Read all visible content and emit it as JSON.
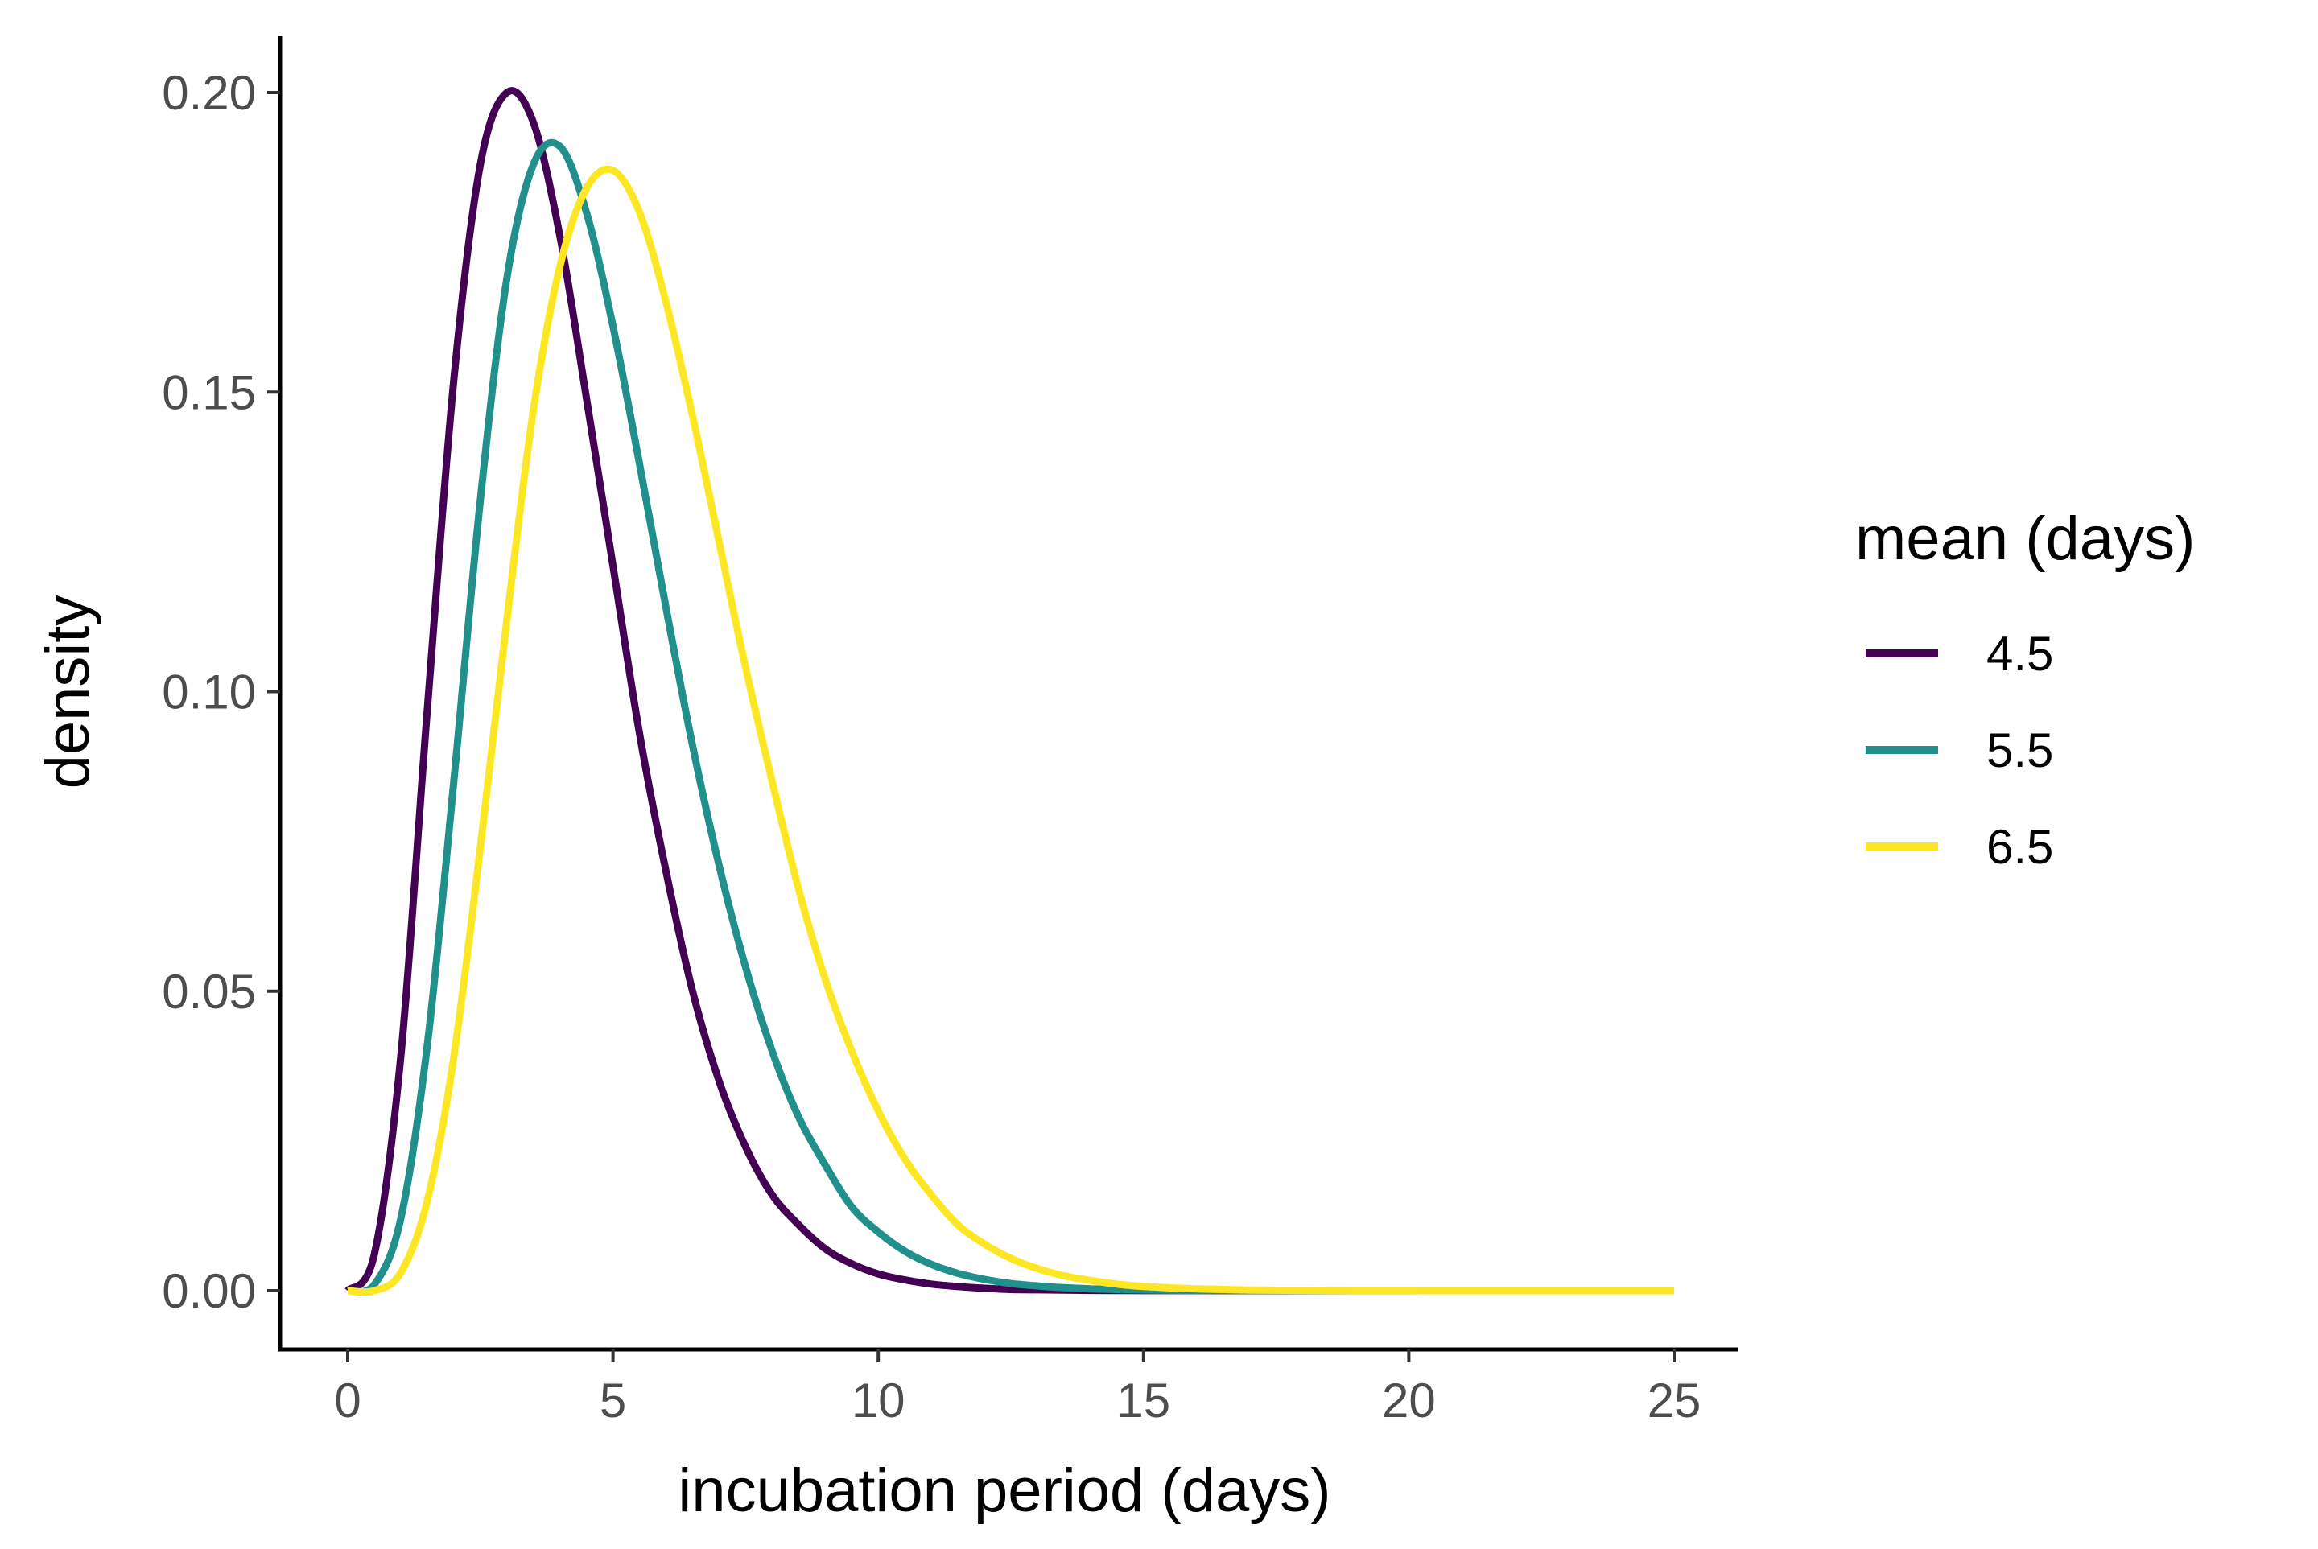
{
  "chart_data": {
    "type": "line",
    "title": "",
    "xlabel": "incubation period (days)",
    "ylabel": "density",
    "xlim": [
      0,
      25
    ],
    "ylim": [
      0,
      0.2
    ],
    "x_ticks": [
      0,
      5,
      10,
      15,
      20,
      25
    ],
    "y_ticks": [
      0.0,
      0.05,
      0.1,
      0.15,
      0.2
    ],
    "x_tick_labels": [
      "0",
      "5",
      "10",
      "15",
      "20",
      "25"
    ],
    "y_tick_labels": [
      "0.00",
      "0.05",
      "0.10",
      "0.15",
      "0.20"
    ],
    "grid": false,
    "legend": {
      "title": "mean (days)",
      "placement": "right"
    },
    "x": [
      0,
      0.5,
      1,
      1.5,
      2,
      2.5,
      3,
      3.5,
      4,
      4.5,
      5,
      5.5,
      6,
      6.5,
      7,
      7.5,
      8,
      8.5,
      9,
      9.5,
      10,
      10.5,
      11,
      11.5,
      12,
      12.5,
      13,
      13.5,
      14,
      14.5,
      15,
      16,
      17,
      18,
      19,
      20,
      21,
      22,
      23,
      24,
      25
    ],
    "series": [
      {
        "name": "4.5",
        "color": "#440154",
        "values": [
          0.0,
          0.006,
          0.039,
          0.097,
          0.152,
          0.188,
          0.2,
          0.195,
          0.176,
          0.149,
          0.121,
          0.093,
          0.07,
          0.05,
          0.035,
          0.024,
          0.016,
          0.011,
          0.007,
          0.0045,
          0.0028,
          0.0018,
          0.0011,
          0.0007,
          0.0004,
          0.0002,
          0.00015,
          0.0001,
          6e-05,
          4e-05,
          2e-05,
          1e-05,
          0.0,
          0.0,
          0.0,
          0.0,
          0.0,
          0.0,
          0.0,
          0.0,
          0.0
        ]
      },
      {
        "name": "5.5",
        "color": "#21908C",
        "values": [
          0.0,
          0.001,
          0.012,
          0.041,
          0.085,
          0.132,
          0.169,
          0.188,
          0.191,
          0.18,
          0.161,
          0.138,
          0.114,
          0.091,
          0.071,
          0.054,
          0.04,
          0.029,
          0.021,
          0.014,
          0.0098,
          0.0066,
          0.0044,
          0.0029,
          0.0019,
          0.0012,
          0.0008,
          0.0005,
          0.0003,
          0.0002,
          0.00012,
          5e-05,
          2e-05,
          1e-05,
          0.0,
          0.0,
          0.0,
          0.0,
          0.0,
          0.0,
          0.0
        ]
      },
      {
        "name": "6.5",
        "color": "#FDE725",
        "values": [
          0.0,
          0.0,
          0.003,
          0.015,
          0.039,
          0.074,
          0.112,
          0.147,
          0.171,
          0.184,
          0.187,
          0.18,
          0.165,
          0.146,
          0.125,
          0.104,
          0.085,
          0.067,
          0.052,
          0.04,
          0.03,
          0.022,
          0.016,
          0.011,
          0.0078,
          0.0054,
          0.0037,
          0.0025,
          0.0017,
          0.0011,
          0.0007,
          0.0003,
          0.0001,
          5e-05,
          2e-05,
          1e-05,
          0.0,
          0.0,
          0.0,
          0.0,
          0.0
        ]
      }
    ]
  }
}
